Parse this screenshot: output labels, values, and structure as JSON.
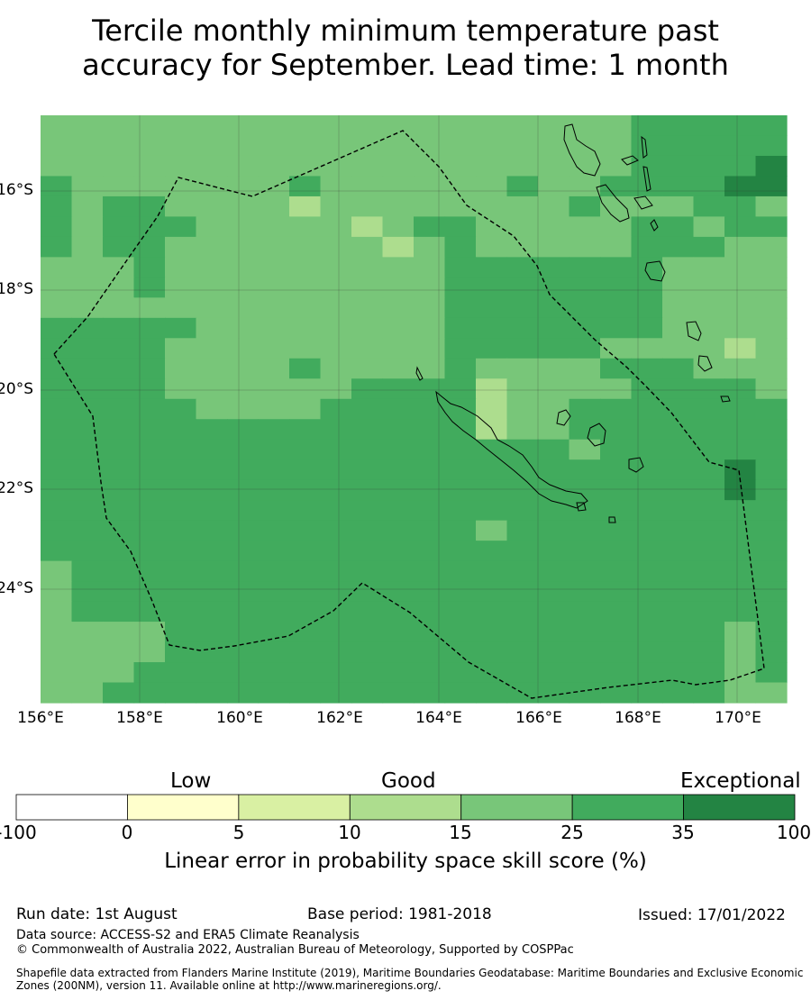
{
  "title": {
    "line1": "Tercile monthly minimum temperature past",
    "line2": "accuracy for September. Lead time: 1 month"
  },
  "map": {
    "lat_labels": [
      "16°S",
      "18°S",
      "20°S",
      "22°S",
      "24°S"
    ],
    "lon_labels": [
      "156°E",
      "158°E",
      "160°E",
      "162°E",
      "164°E",
      "166°E",
      "168°E",
      "170°E"
    ],
    "legend_colors": {
      "c0": "#ffffff",
      "c1": "#ffffcc",
      "c2": "#d9f0a3",
      "c3": "#addd8e",
      "c4": "#78c679",
      "c5": "#41ab5d",
      "c6": "#238443"
    },
    "grid_rows": [
      "444444444444444444455555",
      "444444444444444444455555",
      "444444444444444444455556",
      "544444445444444544555566",
      "545544443444444445444554",
      "545554444434554444455455",
      "545544444443454444455544",
      "444544444444455555554444",
      "444544444444455555554444",
      "444444444444455555554444",
      "555554444444455555554444",
      "555544444444455555444434",
      "555544445444454444555444",
      "555544444455553444455554",
      "555554444555553445555555",
      "555555555555553445555555",
      "555555555555555554555555",
      "555555555555555555555565",
      "555555555555555555555565",
      "555555555555555555555555",
      "555555555555554555555555",
      "555555555555555555555555",
      "455555555555555555555555",
      "455555555555555555555555",
      "455555555555555555555555",
      "444455555555555555555545",
      "444455555555555555555545",
      "444555555555555555555545",
      "445555555555555555555544"
    ]
  },
  "colorbar": {
    "category_low": "Low",
    "category_good": "Good",
    "category_exceptional": "Exceptional",
    "ticks": [
      "-100",
      "0",
      "5",
      "10",
      "15",
      "25",
      "35",
      "100"
    ],
    "title": "Linear error in probability space skill score (%)"
  },
  "footer": {
    "run_date": "Run date: 1st August",
    "base_period": "Base period: 1981-2018",
    "issued": "Issued: 17/01/2022",
    "data_source": "Data source: ACCESS-S2 and ERA5 Climate Reanalysis",
    "copyright": "© Commonwealth of Australia 2022, Australian Bureau of Meteorology, Supported by COSPPac",
    "shapefile": "Shapefile data extracted from Flanders Marine Institute (2019), Maritime Boundaries Geodatabase: Maritime Boundaries and Exclusive Economic Zones (200NM), version 11. Available online at http://www.marineregions.org/."
  }
}
